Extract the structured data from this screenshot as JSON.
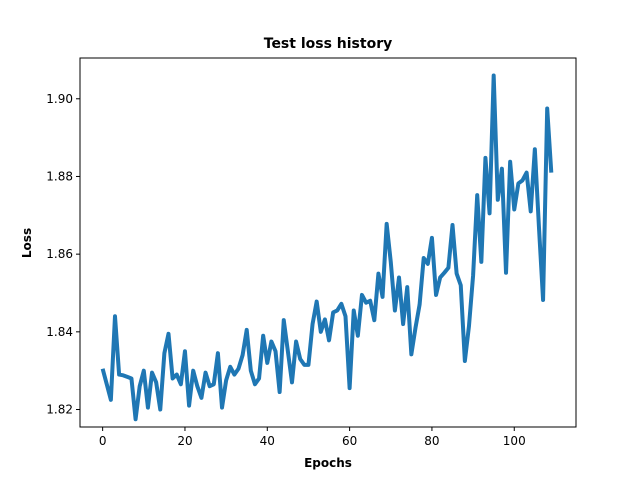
{
  "chart_data": {
    "type": "line",
    "title": "Test loss history",
    "xlabel": "Epochs",
    "ylabel": "Loss",
    "xlim": [
      -5.5,
      115
    ],
    "ylim": [
      1.8155,
      1.9105
    ],
    "xticks": [
      0,
      20,
      40,
      60,
      80,
      100
    ],
    "yticks": [
      1.82,
      1.84,
      1.86,
      1.88,
      1.9
    ],
    "ytick_labels": [
      "1.82",
      "1.84",
      "1.86",
      "1.88",
      "1.90"
    ],
    "grid": false,
    "color": "#1f77b4",
    "series": [
      {
        "name": "Test loss",
        "values": [
          1.8305,
          1.8265,
          1.8225,
          1.844,
          1.829,
          1.8288,
          1.8284,
          1.828,
          1.8175,
          1.826,
          1.83,
          1.8205,
          1.8295,
          1.827,
          1.82,
          1.8345,
          1.8395,
          1.828,
          1.829,
          1.8265,
          1.835,
          1.821,
          1.83,
          1.826,
          1.823,
          1.8295,
          1.826,
          1.8265,
          1.8345,
          1.8205,
          1.8275,
          1.831,
          1.829,
          1.8305,
          1.834,
          1.8405,
          1.83,
          1.8265,
          1.828,
          1.839,
          1.832,
          1.8375,
          1.835,
          1.8245,
          1.843,
          1.835,
          1.827,
          1.8375,
          1.833,
          1.8315,
          1.8315,
          1.842,
          1.8478,
          1.84,
          1.8432,
          1.8378,
          1.845,
          1.8455,
          1.8472,
          1.844,
          1.8255,
          1.8455,
          1.839,
          1.8495,
          1.8475,
          1.848,
          1.843,
          1.855,
          1.849,
          1.8678,
          1.858,
          1.8455,
          1.854,
          1.842,
          1.8515,
          1.8342,
          1.841,
          1.847,
          1.859,
          1.8575,
          1.8642,
          1.8495,
          1.854,
          1.8552,
          1.8565,
          1.8675,
          1.855,
          1.852,
          1.8325,
          1.8415,
          1.8545,
          1.8752,
          1.858,
          1.8848,
          1.8705,
          1.906,
          1.874,
          1.882,
          1.8552,
          1.8838,
          1.8715,
          1.8782,
          1.879,
          1.881,
          1.871,
          1.887,
          1.867,
          1.8482,
          1.8975,
          1.881
        ]
      }
    ]
  }
}
